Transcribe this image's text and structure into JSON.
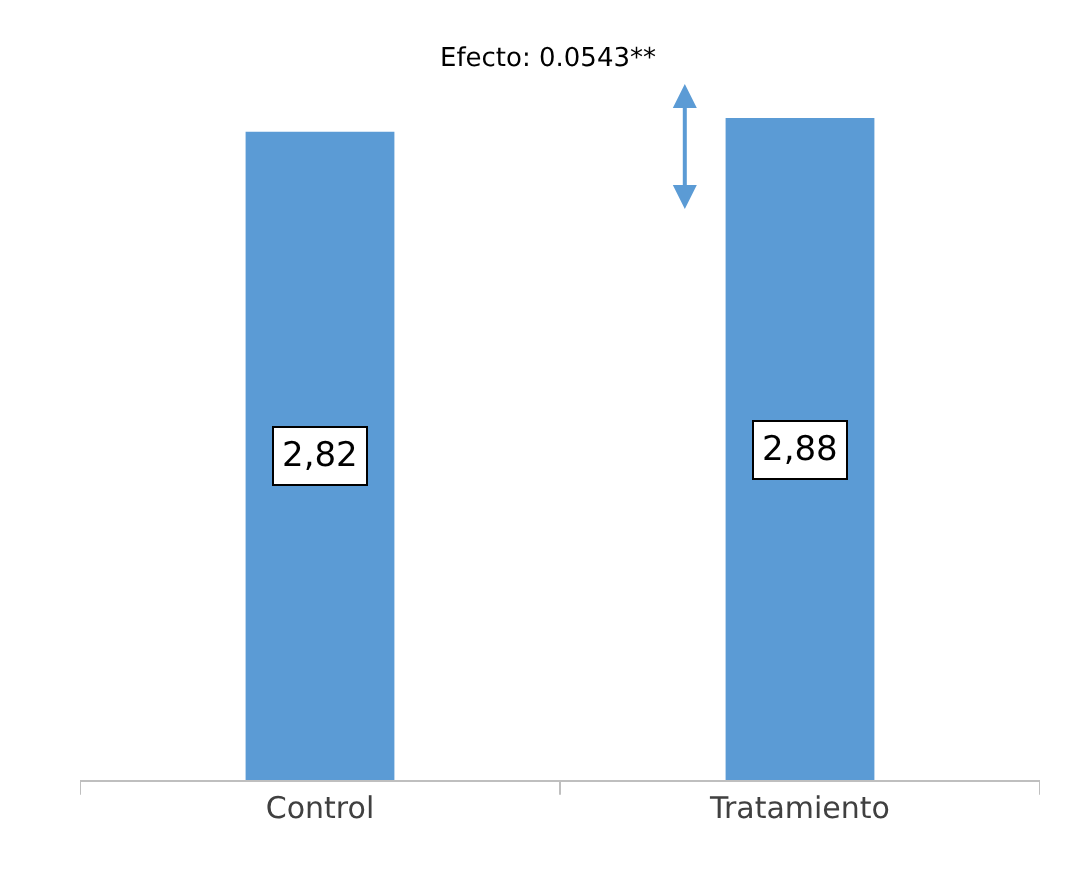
{
  "chart_data": {
    "type": "bar",
    "categories": [
      "Control",
      "Tratamiento"
    ],
    "values": [
      2.82,
      2.88
    ],
    "value_labels": [
      "2,82",
      "2,88"
    ],
    "color": "#5b9bd5",
    "tick_labels": "x",
    "legend": false,
    "annotations": [
      "Efecto: 0.0543**"
    ]
  }
}
